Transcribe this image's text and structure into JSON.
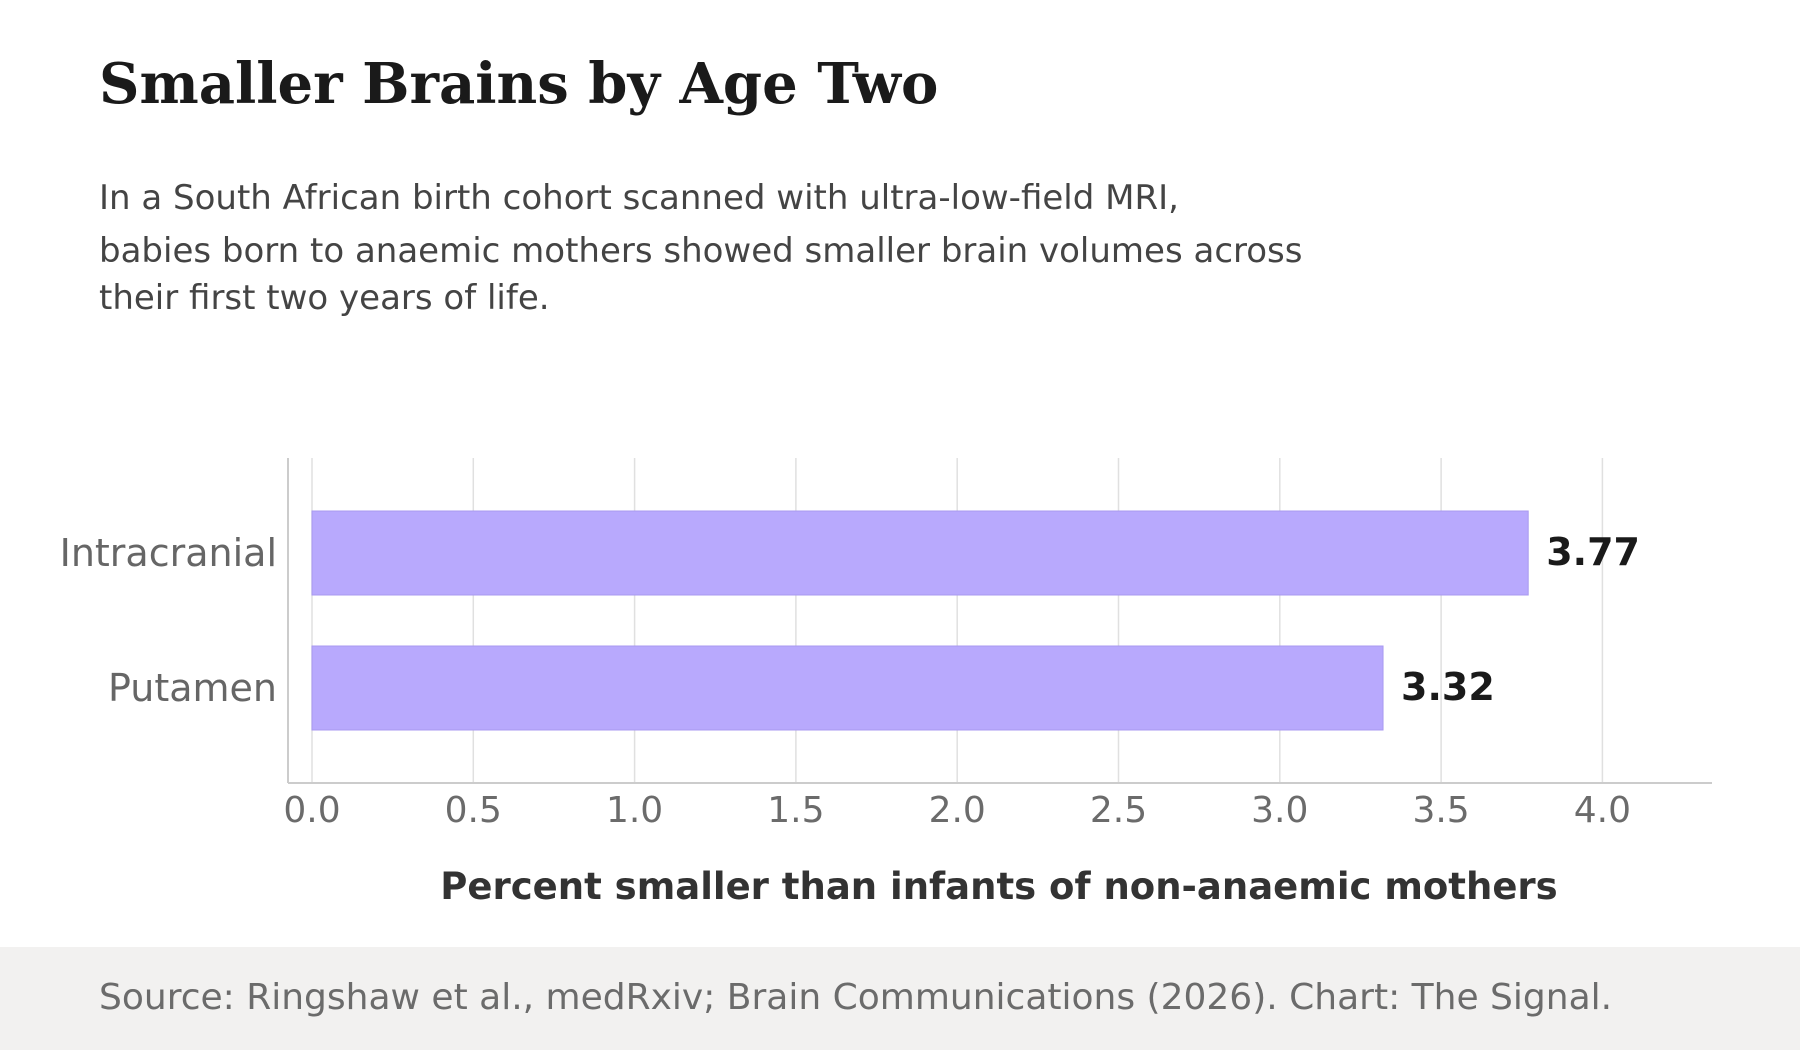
{
  "header": {
    "title": "Smaller Brains by Age Two",
    "subtitle_lines": [
      "In a South African birth cohort scanned with ultra-low-field MRI,",
      "babies born to anaemic mothers showed smaller brain volumes across",
      "their first two years of life."
    ]
  },
  "footer": {
    "source": "Source: Ringshaw et al., medRxiv; Brain Communications (2026). Chart: The Signal."
  },
  "colors": {
    "bar": "#b8a9fd",
    "bar_edge": "#a899f0",
    "grid": "#e0e0e0",
    "axis": "#cccccc",
    "tick_text": "#6b6b6b",
    "category_text": "#666666",
    "value_label": "#1a1a1a",
    "xlabel": "#333333",
    "footer_bg": "#f2f1f0"
  },
  "chart_data": {
    "type": "bar",
    "orientation": "horizontal",
    "categories": [
      "Intracranial",
      "Putamen"
    ],
    "values": [
      3.77,
      3.32
    ],
    "value_labels": [
      "3.77",
      "3.32"
    ],
    "xlabel": "Percent smaller than infants of non-anaemic mothers",
    "ylabel": "",
    "xlim": [
      0,
      4.2
    ],
    "xticks": [
      "0.0",
      "0.5",
      "1.0",
      "1.5",
      "2.0",
      "2.5",
      "3.0",
      "3.5",
      "4.0"
    ],
    "grid": true,
    "legend": "none"
  }
}
